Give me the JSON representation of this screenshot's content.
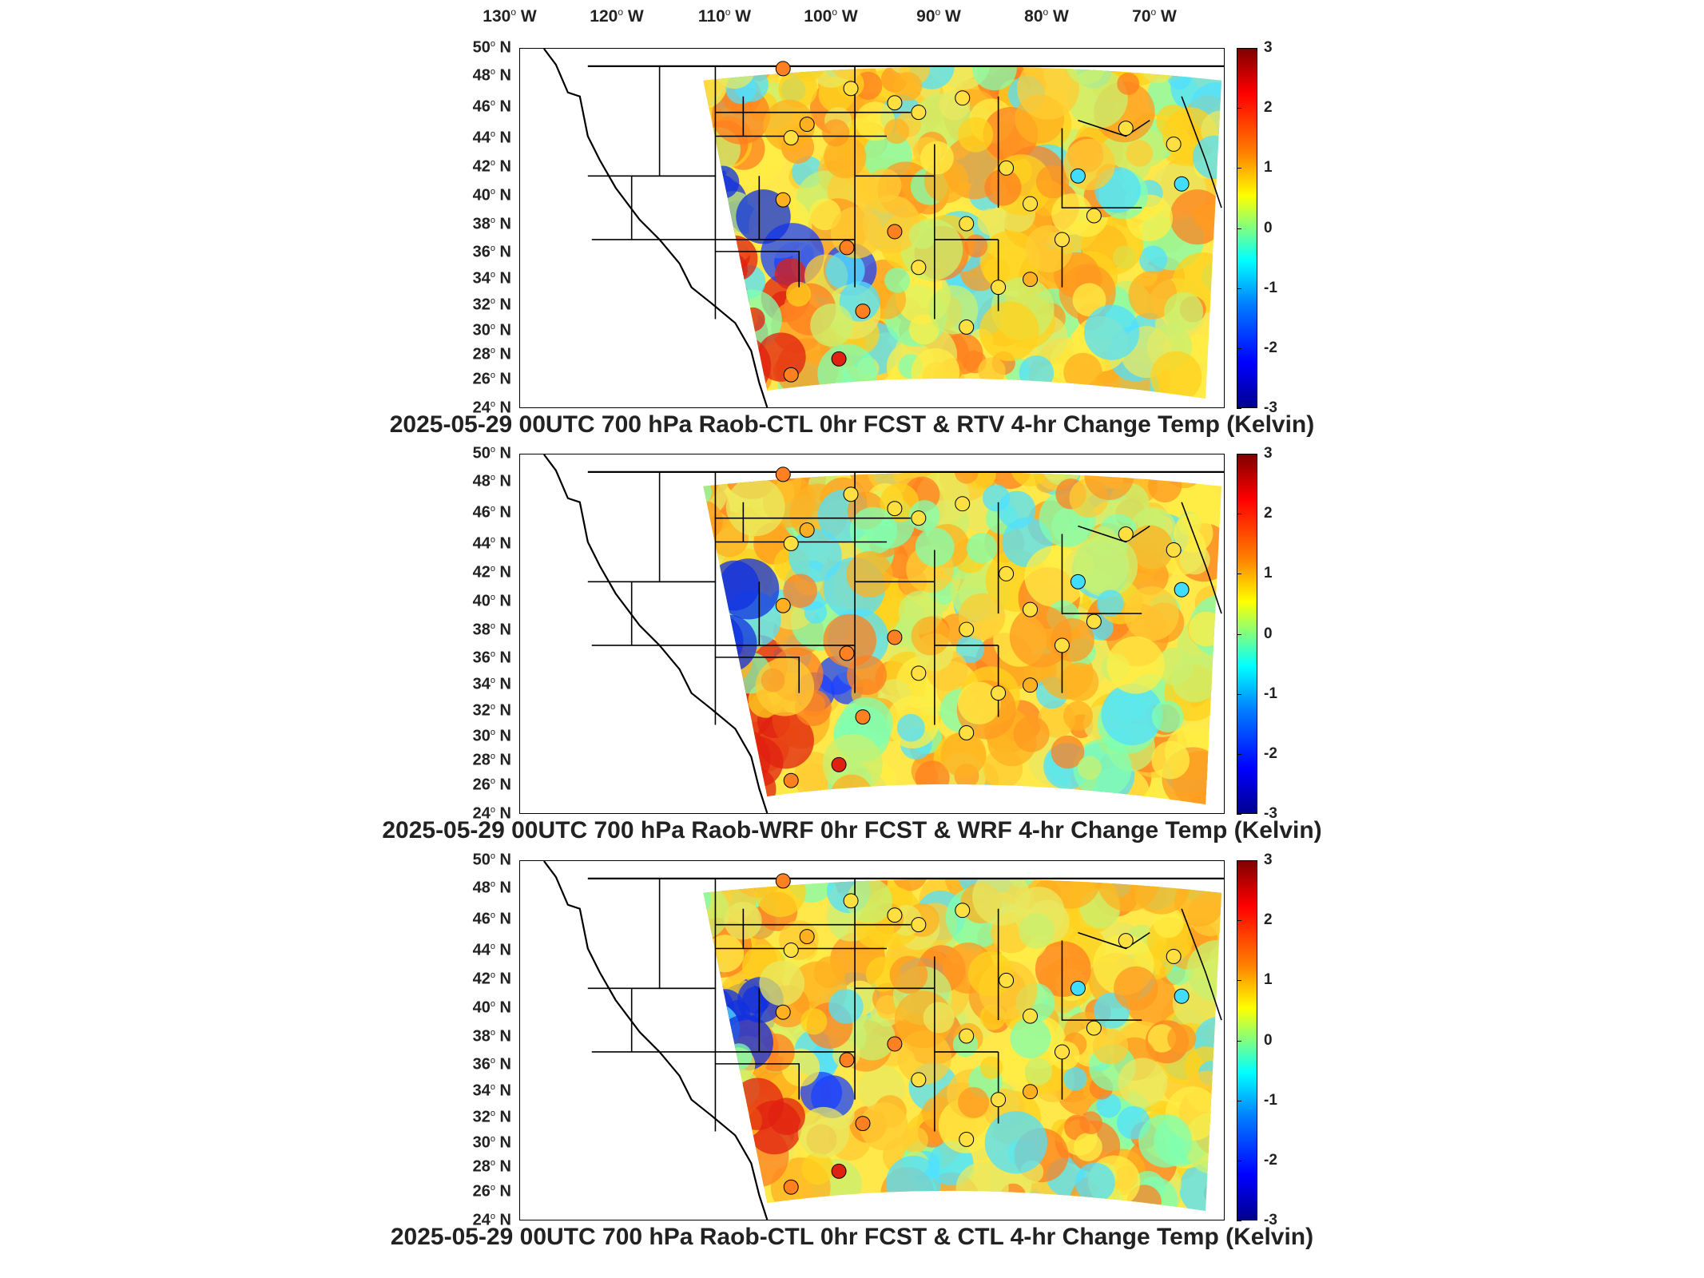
{
  "longitude_labels": [
    {
      "deg": "130",
      "dir": "W"
    },
    {
      "deg": "120",
      "dir": "W"
    },
    {
      "deg": "110",
      "dir": "W"
    },
    {
      "deg": "100",
      "dir": "W"
    },
    {
      "deg": "90",
      "dir": "W"
    },
    {
      "deg": "80",
      "dir": "W"
    },
    {
      "deg": "70",
      "dir": "W"
    }
  ],
  "latitude_labels": [
    {
      "deg": "50",
      "dir": "N"
    },
    {
      "deg": "48",
      "dir": "N"
    },
    {
      "deg": "46",
      "dir": "N"
    },
    {
      "deg": "44",
      "dir": "N"
    },
    {
      "deg": "42",
      "dir": "N"
    },
    {
      "deg": "40",
      "dir": "N"
    },
    {
      "deg": "38",
      "dir": "N"
    },
    {
      "deg": "36",
      "dir": "N"
    },
    {
      "deg": "34",
      "dir": "N"
    },
    {
      "deg": "32",
      "dir": "N"
    },
    {
      "deg": "30",
      "dir": "N"
    },
    {
      "deg": "28",
      "dir": "N"
    },
    {
      "deg": "26",
      "dir": "N"
    },
    {
      "deg": "24",
      "dir": "N"
    }
  ],
  "colorbar": {
    "ticks": [
      "3",
      "2",
      "1",
      "0",
      "-1",
      "-2",
      "-3"
    ],
    "min": -3,
    "max": 3,
    "colors": [
      "#00008f",
      "#0000ff",
      "#00ffff",
      "#ffff00",
      "#ff0000",
      "#800000"
    ]
  },
  "panels": [
    {
      "caption": "2025-05-29 00UTC 700 hPa Raob-CTL 0hr FCST & RTV 4-hr Change Temp (Kelvin)"
    },
    {
      "caption": "2025-05-29 00UTC 700 hPa Raob-WRF 0hr FCST & WRF 4-hr Change Temp (Kelvin)"
    },
    {
      "caption": "2025-05-29 00UTC 700 hPa Raob-CTL 0hr FCST & CTL 4-hr Change Temp (Kelvin)"
    }
  ],
  "map_extent": {
    "lon": [
      -133,
      -66
    ],
    "lat": [
      24,
      50
    ]
  }
}
